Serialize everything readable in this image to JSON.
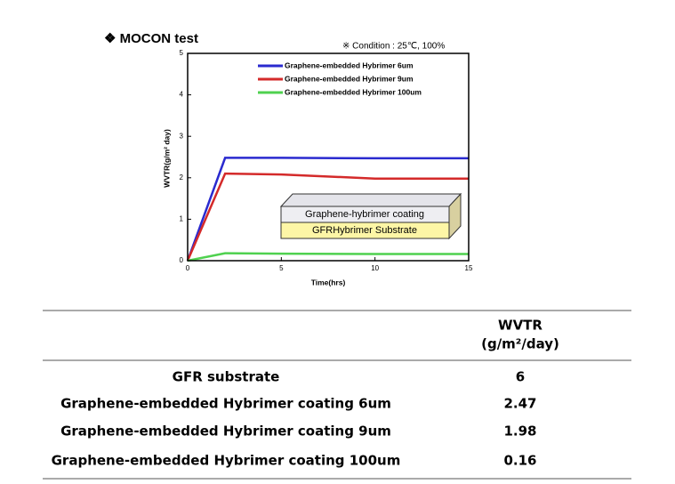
{
  "chart_data": {
    "type": "line",
    "title": "❖ MOCON test",
    "annotation": "※ Condition : 25℃, 100%",
    "x_label": "Time(hrs)",
    "y_label": "WVTR(g/m² day)",
    "x": [
      0,
      2,
      5,
      10,
      15
    ],
    "series": [
      {
        "name": "Graphene-embedded Hybrimer 6um",
        "color": "#2a2acf",
        "values": [
          0,
          2.48,
          2.48,
          2.47,
          2.47
        ]
      },
      {
        "name": "Graphene-embedded Hybrimer 9um",
        "color": "#d42a2a",
        "values": [
          0,
          2.1,
          2.08,
          1.98,
          1.98
        ]
      },
      {
        "name": "Graphene-embedded Hybrimer 100um",
        "color": "#4fd14f",
        "values": [
          0,
          0.18,
          0.17,
          0.16,
          0.16
        ]
      }
    ],
    "xlim": [
      0,
      15
    ],
    "xticks": [
      0,
      5,
      10,
      15
    ],
    "ylim": [
      0,
      5
    ],
    "yticks": [
      0,
      1,
      2,
      3,
      4,
      5
    ],
    "legend": "upper right",
    "inset_labels": [
      "Graphene-hybrimer coating",
      "GFRHybrimer Substrate"
    ]
  },
  "table": {
    "header": [
      "WVTR",
      "(g/m²/day)"
    ],
    "rows": [
      [
        "GFR substrate",
        "6"
      ],
      [
        "Graphene-embedded Hybrimer coating 6um",
        "2.47"
      ],
      [
        "Graphene-embedded Hybrimer coating 9um",
        "1.98"
      ],
      [
        "Graphene-embedded Hybrimer coating 100um",
        "0.16"
      ]
    ]
  }
}
